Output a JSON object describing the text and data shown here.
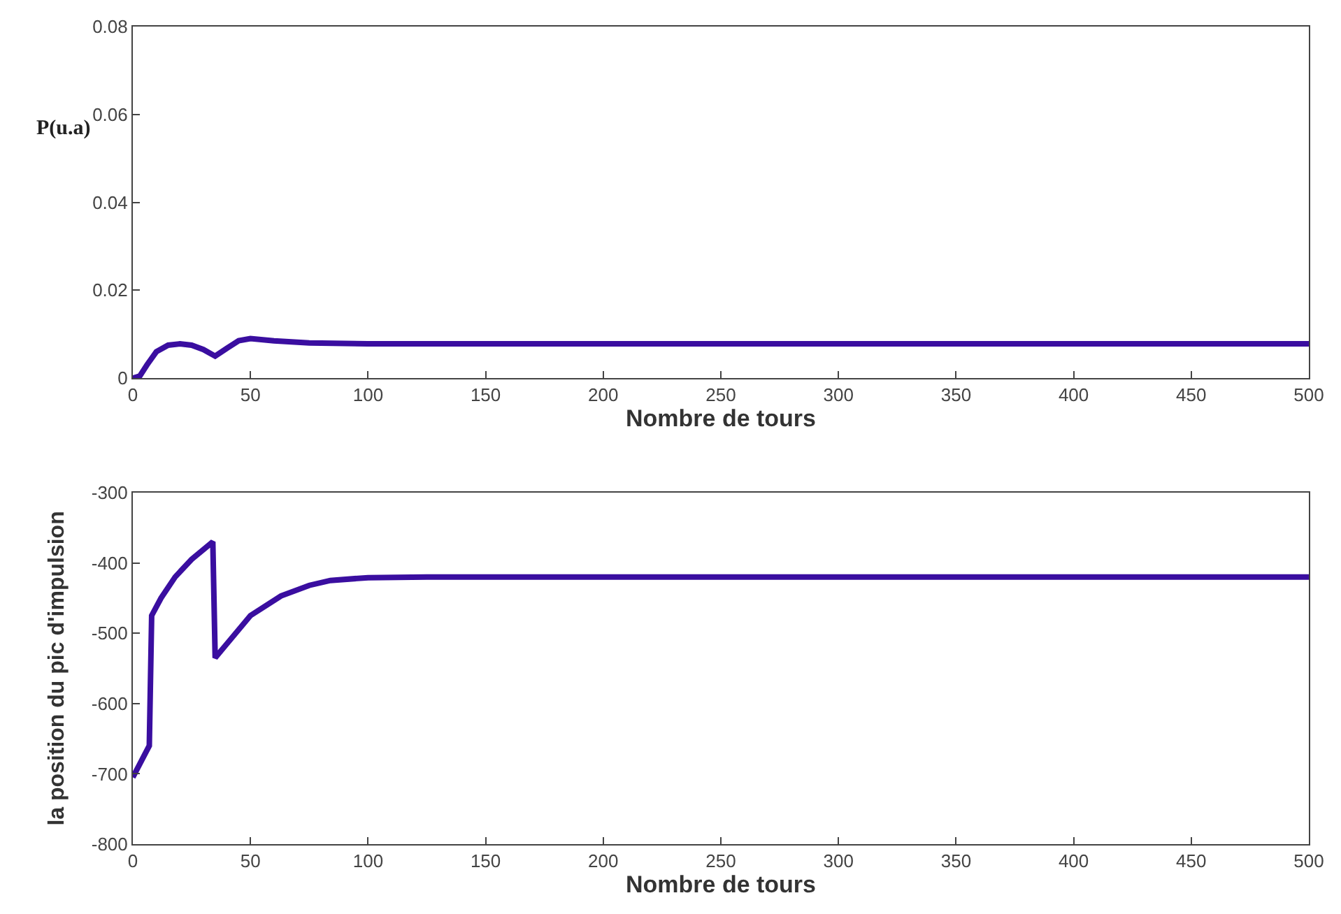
{
  "chart_data": [
    {
      "type": "line",
      "ylabel": "P(u.a)",
      "xlabel": "Nombre de tours",
      "xlim": [
        0,
        500
      ],
      "xticks": [
        0,
        50,
        100,
        150,
        200,
        250,
        300,
        350,
        400,
        450,
        500
      ],
      "ylim": [
        0,
        0.08
      ],
      "yticks": [
        0,
        0.02,
        0.04,
        0.06,
        0.08
      ],
      "legend": false,
      "marker": "none",
      "line_style": "solid",
      "series": [
        {
          "color": "#3a0ea0",
          "x": [
            0,
            3,
            6,
            10,
            15,
            20,
            25,
            30,
            35,
            40,
            45,
            50,
            60,
            75,
            100,
            150,
            500
          ],
          "values": [
            0,
            0.0005,
            0.003,
            0.006,
            0.0075,
            0.0078,
            0.0075,
            0.0065,
            0.005,
            0.0068,
            0.0085,
            0.009,
            0.0085,
            0.008,
            0.0078,
            0.0078,
            0.0078
          ]
        }
      ]
    },
    {
      "type": "line",
      "ylabel": "la position du pic d'impulsion",
      "xlabel": "Nombre de tours",
      "xlim": [
        0,
        500
      ],
      "xticks": [
        0,
        50,
        100,
        150,
        200,
        250,
        300,
        350,
        400,
        450,
        500
      ],
      "ylim": [
        -800,
        -300
      ],
      "yticks": [
        -800,
        -700,
        -600,
        -500,
        -400,
        -300
      ],
      "legend": false,
      "marker": "none",
      "line_style": "solid",
      "series": [
        {
          "color": "#3a0ea0",
          "x": [
            0,
            7,
            8,
            12,
            18,
            25,
            34,
            35,
            40,
            50,
            63,
            75,
            84,
            100,
            125,
            150,
            500
          ],
          "values": [
            -705,
            -660,
            -475,
            -450,
            -420,
            -395,
            -370,
            -535,
            -515,
            -475,
            -447,
            -432,
            -425,
            -421,
            -420,
            -420,
            -420
          ]
        }
      ]
    }
  ]
}
